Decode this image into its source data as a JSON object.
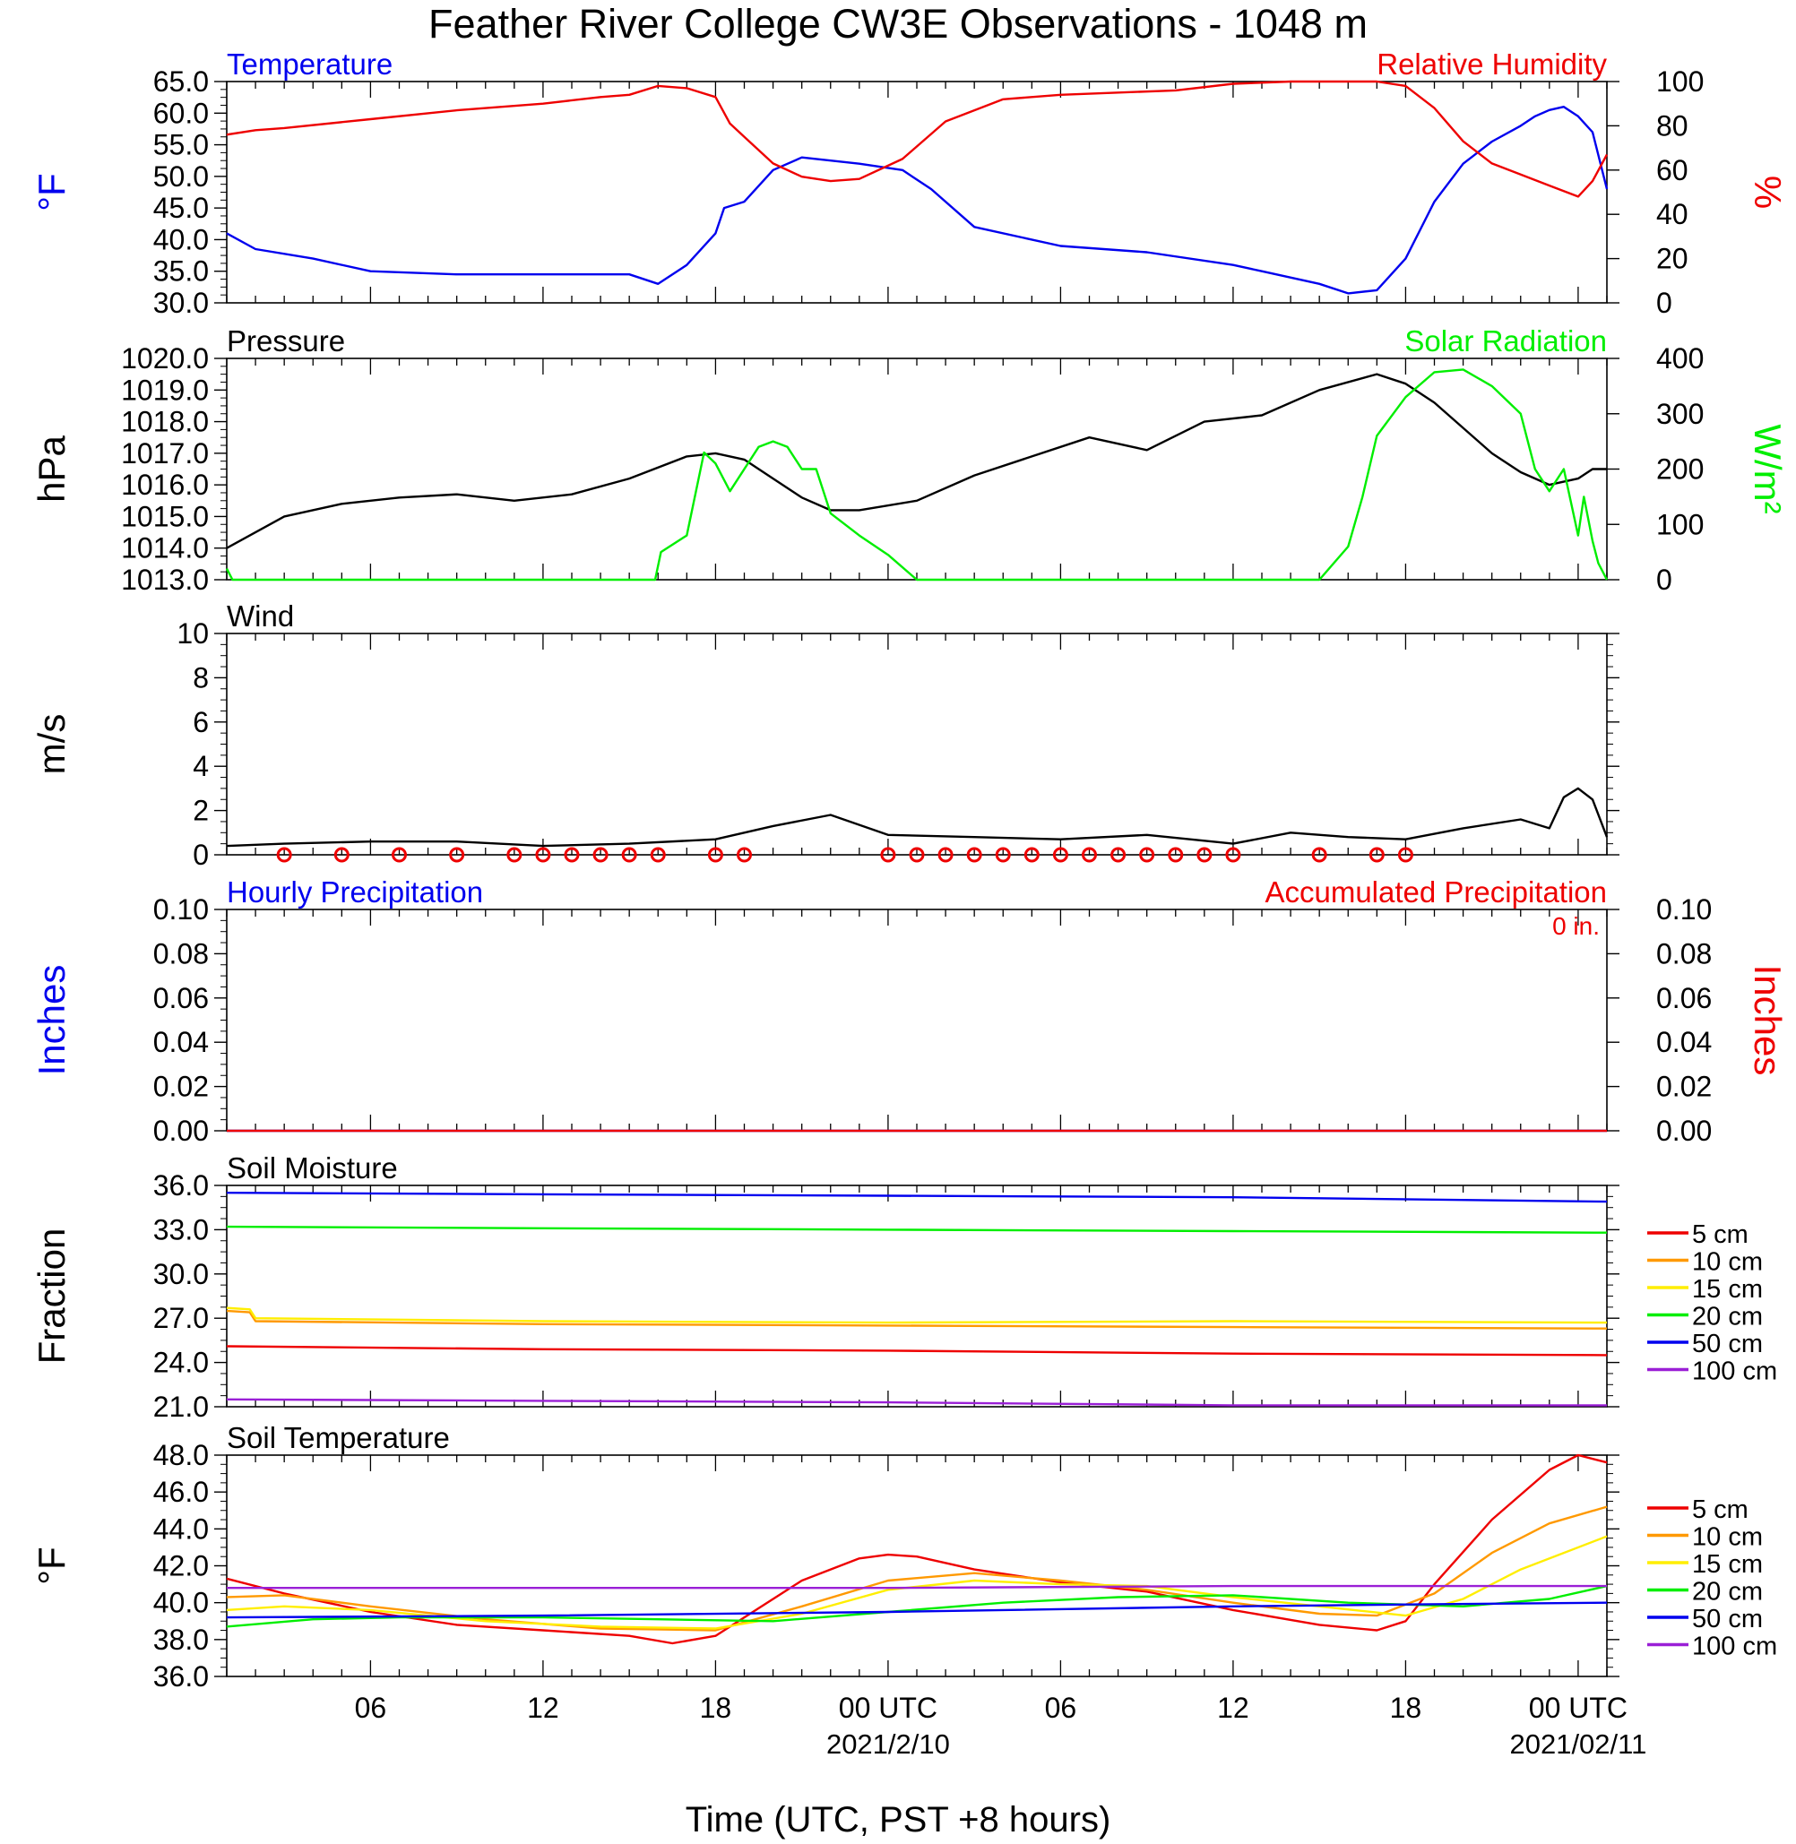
{
  "title": "Feather River College CW3E Observations - 1048 m",
  "xaxis": {
    "label": "Time (UTC, PST +8 hours)",
    "ticks": [
      "06",
      "12",
      "18",
      "00 UTC",
      "06",
      "12",
      "18",
      "00 UTC"
    ],
    "tick_hours": [
      6,
      12,
      18,
      24,
      30,
      36,
      42,
      48
    ],
    "dates": [
      {
        "hour": 24,
        "text": "2021/2/10"
      },
      {
        "hour": 48,
        "text": "2021/02/11"
      }
    ],
    "range_hours": [
      1,
      49
    ]
  },
  "colors": {
    "blue": "#0000ee",
    "red": "#ee0000",
    "green": "#00ee00",
    "black": "#000000",
    "orange": "#ff9900",
    "yellow": "#ffee00",
    "purple": "#9a1fd6"
  },
  "chart_data": [
    {
      "type": "line",
      "panel": "temperature-rh",
      "left_title": "Temperature",
      "right_title": "Relative Humidity",
      "ylabel_left": "°F",
      "ylabel_right": "%",
      "ylim_left": [
        30,
        65
      ],
      "ylim_right": [
        0,
        100
      ],
      "yticks_left": [
        "30.0",
        "35.0",
        "40.0",
        "45.0",
        "50.0",
        "55.0",
        "60.0",
        "65.0"
      ],
      "yticks_right": [
        "0",
        "20",
        "40",
        "60",
        "80",
        "100"
      ],
      "series": [
        {
          "name": "Temperature",
          "axis": "left",
          "color": "#0000ee",
          "x": [
            1,
            2,
            4,
            6,
            9,
            12,
            15,
            16,
            17,
            18,
            18.3,
            19,
            20,
            21,
            22,
            23,
            24.5,
            25.5,
            27,
            30,
            33,
            36,
            37,
            39,
            40,
            41,
            42,
            43,
            44,
            45,
            46,
            46.5,
            47,
            47.5,
            48,
            48.5,
            49
          ],
          "y": [
            41,
            38.5,
            37,
            35,
            34.5,
            34.5,
            34.5,
            33,
            36,
            41,
            45,
            46,
            51,
            53,
            52.5,
            52,
            51,
            48,
            42,
            39,
            38,
            36,
            35,
            33,
            31.5,
            32,
            37,
            46,
            52,
            55.5,
            58,
            59.5,
            60.5,
            61,
            59.5,
            57,
            48
          ]
        },
        {
          "name": "Relative Humidity",
          "axis": "right",
          "color": "#ee0000",
          "x": [
            1,
            2,
            3,
            6,
            9,
            12,
            14,
            15,
            16,
            17,
            18,
            18.5,
            19,
            20,
            21,
            22,
            23,
            24.5,
            26,
            28,
            30,
            34,
            36,
            38,
            41,
            42,
            43,
            44,
            45,
            46,
            47,
            48,
            48.5,
            49
          ],
          "y": [
            76,
            78,
            79,
            83,
            87,
            90,
            93,
            94,
            98,
            97,
            93,
            81,
            75,
            63,
            57,
            55,
            56,
            65,
            82,
            92,
            94,
            96,
            99,
            100,
            100,
            98,
            88,
            73,
            63,
            58,
            53,
            48,
            55,
            67
          ]
        }
      ]
    },
    {
      "type": "line",
      "panel": "pressure-solar",
      "left_title": "Pressure",
      "right_title": "Solar Radiation",
      "ylabel_left": "hPa",
      "ylabel_right": "W/m²",
      "ylim_left": [
        1013,
        1020
      ],
      "ylim_right": [
        0,
        400
      ],
      "yticks_left": [
        "1013.0",
        "1014.0",
        "1015.0",
        "1016.0",
        "1017.0",
        "1018.0",
        "1019.0",
        "1020.0"
      ],
      "yticks_right": [
        "0",
        "100",
        "200",
        "300",
        "400"
      ],
      "series": [
        {
          "name": "Pressure",
          "axis": "left",
          "color": "#000000",
          "x": [
            1,
            3,
            5,
            7,
            9,
            11,
            13,
            15,
            17,
            18,
            19,
            20,
            21,
            22,
            23,
            25,
            27,
            29,
            31,
            33,
            35,
            37,
            39,
            41,
            42,
            43,
            44,
            45,
            46,
            47,
            48,
            48.5,
            49
          ],
          "y": [
            1014.0,
            1015.0,
            1015.4,
            1015.6,
            1015.7,
            1015.5,
            1015.7,
            1016.2,
            1016.9,
            1017.0,
            1016.8,
            1016.2,
            1015.6,
            1015.2,
            1015.2,
            1015.5,
            1016.3,
            1016.9,
            1017.5,
            1017.1,
            1018.0,
            1018.2,
            1019.0,
            1019.5,
            1019.2,
            1018.6,
            1017.8,
            1017.0,
            1016.4,
            1016.0,
            1016.2,
            1016.5,
            1016.5
          ]
        },
        {
          "name": "Solar Radiation",
          "axis": "right",
          "color": "#00ee00",
          "x": [
            1,
            1.2,
            15.9,
            16.1,
            17,
            17.6,
            18,
            18.5,
            19.5,
            20,
            20.5,
            21,
            21.5,
            22,
            23,
            24,
            25,
            26,
            39,
            40,
            40.5,
            41,
            42,
            43,
            44,
            45,
            46,
            46.5,
            47,
            47.5,
            48,
            48.2,
            48.5,
            48.7,
            49
          ],
          "y": [
            20,
            0,
            0,
            50,
            80,
            230,
            210,
            160,
            240,
            250,
            240,
            200,
            200,
            120,
            80,
            45,
            0,
            0,
            0,
            60,
            150,
            260,
            330,
            375,
            380,
            350,
            300,
            200,
            160,
            200,
            80,
            150,
            70,
            30,
            0
          ]
        }
      ]
    },
    {
      "type": "line",
      "panel": "wind",
      "left_title": "Wind",
      "ylabel_left": "m/s",
      "ylim_left": [
        0,
        10
      ],
      "yticks_left": [
        "0",
        "2",
        "4",
        "6",
        "8",
        "10"
      ],
      "series": [
        {
          "name": "Wind",
          "axis": "left",
          "color": "#000000",
          "x": [
            1,
            3,
            6,
            9,
            12,
            15,
            18,
            20,
            22,
            24,
            27,
            30,
            33,
            36,
            38,
            40,
            42,
            44,
            46,
            47,
            47.5,
            48,
            48.5,
            49
          ],
          "y": [
            0.4,
            0.5,
            0.6,
            0.6,
            0.4,
            0.5,
            0.7,
            1.3,
            1.8,
            0.9,
            0.8,
            0.7,
            0.9,
            0.5,
            1.0,
            0.8,
            0.7,
            1.2,
            1.6,
            1.2,
            2.6,
            3.0,
            2.5,
            0.8
          ]
        }
      ],
      "calm_hours": [
        3,
        5,
        7,
        9,
        11,
        12,
        13,
        14,
        15,
        16,
        18,
        19,
        24,
        25,
        26,
        27,
        28,
        29,
        30,
        31,
        32,
        33,
        34,
        35,
        36,
        39,
        41,
        42
      ]
    },
    {
      "type": "line",
      "panel": "precipitation",
      "left_title": "Hourly Precipitation",
      "right_title": "Accumulated Precipitation",
      "annotation": "0 in.",
      "ylabel_left": "Inches",
      "ylabel_right": "Inches",
      "ylim_left": [
        0,
        0.1
      ],
      "ylim_right": [
        0,
        0.1
      ],
      "yticks_left": [
        "0.00",
        "0.02",
        "0.04",
        "0.06",
        "0.08",
        "0.10"
      ],
      "yticks_right": [
        "0.00",
        "0.02",
        "0.04",
        "0.06",
        "0.08",
        "0.10"
      ],
      "series": [
        {
          "name": "Hourly Precipitation",
          "axis": "left",
          "color": "#0000ee",
          "x": [
            1,
            49
          ],
          "y": [
            0,
            0
          ]
        },
        {
          "name": "Accumulated Precipitation",
          "axis": "left",
          "color": "#ee0000",
          "x": [
            1,
            49
          ],
          "y": [
            0,
            0
          ]
        }
      ]
    },
    {
      "type": "line",
      "panel": "soil-moisture",
      "left_title": "Soil Moisture",
      "ylabel_left": "Fraction",
      "ylim_left": [
        21,
        36
      ],
      "yticks_left": [
        "21.0",
        "24.0",
        "27.0",
        "30.0",
        "33.0",
        "36.0"
      ],
      "series": [
        {
          "name": "5 cm",
          "color": "#ee0000",
          "x": [
            1,
            12,
            24,
            36,
            49
          ],
          "y": [
            25.1,
            24.9,
            24.8,
            24.6,
            24.5
          ]
        },
        {
          "name": "10 cm",
          "color": "#ff9900",
          "x": [
            1,
            1.8,
            2,
            12,
            24,
            36,
            49
          ],
          "y": [
            27.5,
            27.4,
            26.8,
            26.6,
            26.5,
            26.4,
            26.3
          ]
        },
        {
          "name": "15 cm",
          "color": "#ffee00",
          "x": [
            1,
            1.8,
            2,
            12,
            24,
            36,
            49
          ],
          "y": [
            27.7,
            27.6,
            27.0,
            26.8,
            26.7,
            26.8,
            26.7
          ]
        },
        {
          "name": "20 cm",
          "color": "#00ee00",
          "x": [
            1,
            12,
            24,
            36,
            49
          ],
          "y": [
            33.2,
            33.1,
            33.0,
            32.9,
            32.8
          ]
        },
        {
          "name": "50 cm",
          "color": "#0000ee",
          "x": [
            1,
            12,
            24,
            36,
            49
          ],
          "y": [
            35.5,
            35.4,
            35.3,
            35.2,
            34.9
          ]
        },
        {
          "name": "100 cm",
          "color": "#9a1fd6",
          "x": [
            1,
            12,
            24,
            36,
            49
          ],
          "y": [
            21.5,
            21.4,
            21.3,
            21.1,
            21.1
          ]
        }
      ]
    },
    {
      "type": "line",
      "panel": "soil-temperature",
      "left_title": "Soil Temperature",
      "ylabel_left": "°F",
      "ylim_left": [
        36,
        48
      ],
      "yticks_left": [
        "36.0",
        "38.0",
        "40.0",
        "42.0",
        "44.0",
        "46.0",
        "48.0"
      ],
      "series": [
        {
          "name": "5 cm",
          "color": "#ee0000",
          "x": [
            1,
            3,
            6,
            9,
            12,
            15,
            16.5,
            18,
            19,
            21,
            23,
            24,
            25,
            27,
            30,
            33,
            36,
            39,
            41,
            42,
            43,
            45,
            47,
            48,
            49
          ],
          "y": [
            41.3,
            40.5,
            39.5,
            38.8,
            38.5,
            38.2,
            37.8,
            38.2,
            39.2,
            41.2,
            42.4,
            42.6,
            42.5,
            41.8,
            41.1,
            40.6,
            39.6,
            38.8,
            38.5,
            39.0,
            41.0,
            44.5,
            47.2,
            48.0,
            47.6
          ]
        },
        {
          "name": "10 cm",
          "color": "#ff9900",
          "x": [
            1,
            3,
            6,
            10,
            14,
            18,
            21,
            24,
            27,
            30,
            33,
            36,
            39,
            41,
            43,
            45,
            47,
            49
          ],
          "y": [
            40.3,
            40.4,
            39.8,
            39.1,
            38.6,
            38.5,
            39.8,
            41.2,
            41.6,
            41.2,
            40.7,
            40.0,
            39.4,
            39.3,
            40.5,
            42.7,
            44.3,
            45.2
          ]
        },
        {
          "name": "15 cm",
          "color": "#ffee00",
          "x": [
            1,
            3,
            6,
            10,
            14,
            18,
            21,
            24,
            27,
            30,
            33,
            36,
            39,
            42,
            44,
            46,
            49
          ],
          "y": [
            39.6,
            39.8,
            39.6,
            39.0,
            38.7,
            38.6,
            39.4,
            40.7,
            41.2,
            41.0,
            40.9,
            40.3,
            39.8,
            39.3,
            40.2,
            41.8,
            43.6
          ]
        },
        {
          "name": "20 cm",
          "color": "#00ee00",
          "x": [
            1,
            4,
            7,
            12,
            16,
            20,
            24,
            28,
            32,
            36,
            40,
            44,
            47,
            49
          ],
          "y": [
            38.7,
            39.1,
            39.2,
            39.2,
            39.1,
            39.0,
            39.5,
            40.0,
            40.3,
            40.4,
            40.0,
            39.8,
            40.2,
            40.9
          ]
        },
        {
          "name": "50 cm",
          "color": "#0000ee",
          "x": [
            1,
            12,
            24,
            36,
            42,
            49
          ],
          "y": [
            39.2,
            39.3,
            39.5,
            39.8,
            39.9,
            40.0
          ]
        },
        {
          "name": "100 cm",
          "color": "#9a1fd6",
          "x": [
            1,
            12,
            24,
            36,
            49
          ],
          "y": [
            40.8,
            40.8,
            40.8,
            40.9,
            40.9
          ]
        }
      ]
    }
  ]
}
